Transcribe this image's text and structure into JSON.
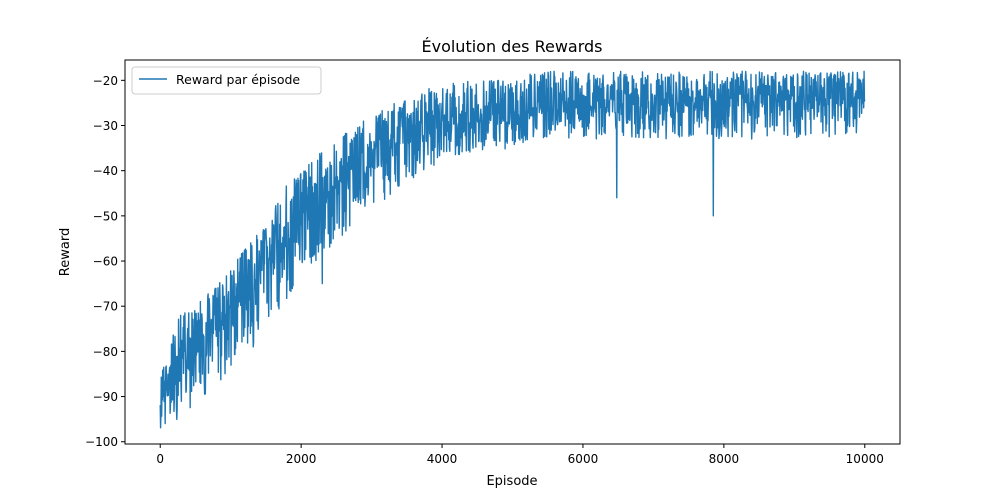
{
  "chart_data": {
    "type": "line",
    "title": "Évolution des Rewards",
    "xlabel": "Episode",
    "ylabel": "Reward",
    "xlim": [
      -500,
      10500
    ],
    "ylim": [
      -100.5,
      -15.5
    ],
    "xticks": [
      0,
      2000,
      4000,
      6000,
      8000,
      10000
    ],
    "yticks": [
      -100,
      -90,
      -80,
      -70,
      -60,
      -50,
      -40,
      -30,
      -20
    ],
    "grid": false,
    "legend": {
      "position": "top-left",
      "entries": [
        "Reward par épisode"
      ]
    },
    "series": [
      {
        "name": "Reward par épisode",
        "color": "#1f77b4",
        "envelope_x": [
          0,
          100,
          250,
          500,
          750,
          1000,
          1250,
          1500,
          1750,
          2000,
          2250,
          2500,
          2750,
          3000,
          3250,
          3500,
          3750,
          4000,
          4500,
          5000,
          5300,
          6000,
          7000,
          8000,
          9000,
          10000
        ],
        "envelope_upper": [
          -84,
          -82,
          -72,
          -70,
          -66,
          -62,
          -56,
          -52,
          -44,
          -40,
          -36,
          -33,
          -30,
          -28,
          -25,
          -24,
          -22,
          -21,
          -20,
          -20,
          -18,
          -18,
          -18,
          -18,
          -18,
          -18
        ],
        "envelope_mean": [
          -91,
          -88,
          -84,
          -80,
          -75,
          -70,
          -65,
          -60,
          -56,
          -51,
          -47,
          -43,
          -40,
          -37,
          -35,
          -33,
          -32,
          -30,
          -29,
          -28,
          -26,
          -26,
          -25,
          -25,
          -24,
          -24
        ],
        "envelope_lower": [
          -97,
          -96,
          -95,
          -92,
          -88,
          -86,
          -80,
          -76,
          -70,
          -64,
          -60,
          -56,
          -52,
          -48,
          -46,
          -43,
          -40,
          -38,
          -36,
          -35,
          -33,
          -33,
          -33,
          -33,
          -33,
          -32
        ],
        "outliers": [
          {
            "x": 6480,
            "y": -46
          },
          {
            "x": 7850,
            "y": -50
          },
          {
            "x": 2300,
            "y": -65
          },
          {
            "x": 1320,
            "y": -79
          }
        ]
      }
    ]
  }
}
